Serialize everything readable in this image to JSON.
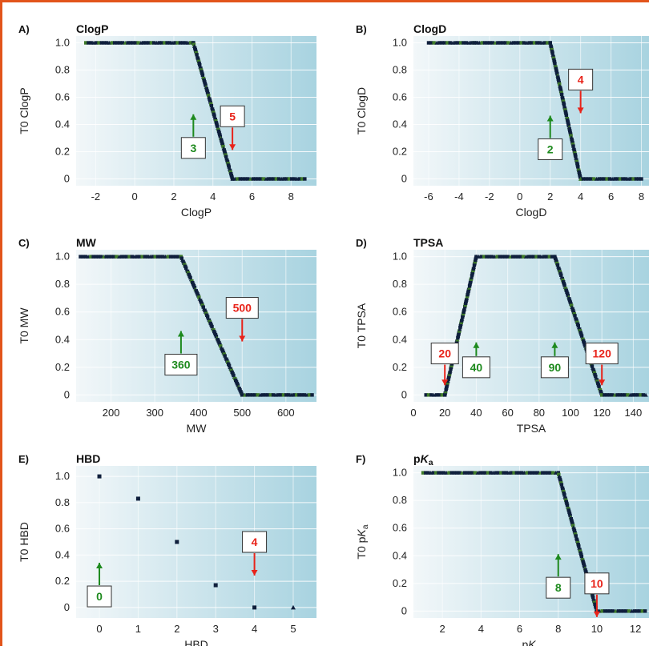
{
  "colors": {
    "frame": "#e2541b",
    "plot_left": "#f2f7f9",
    "plot_right": "#a8d3e0",
    "grid": "#ffffff",
    "lower_arrow": "#1e8a1e",
    "upper_arrow": "#e8231a",
    "points": "#0f1f3c",
    "points_green": "#3f7a2a"
  },
  "chart_data": [
    {
      "panel_label": "A)",
      "title": "ClogP",
      "type": "line",
      "xlabel": "ClogP",
      "ylabel": "T0 ClogP",
      "xlim": [
        -3,
        9.3
      ],
      "ylim": [
        -0.05,
        1.05
      ],
      "xticks": [
        -2,
        0,
        2,
        4,
        6,
        8
      ],
      "yticks": [
        0,
        0.2,
        0.4,
        0.6,
        0.8,
        1.0
      ],
      "ytick_labels": [
        "0",
        "0.2",
        "0.4",
        "0.6",
        "0.8",
        "1.0"
      ],
      "series": [
        {
          "x": [
            -2.5,
            3,
            5,
            8.7
          ],
          "y": [
            1,
            1,
            0,
            0
          ]
        }
      ],
      "lower_threshold": {
        "value": 3,
        "label": "3"
      },
      "upper_threshold": {
        "value": 5,
        "label": "5"
      }
    },
    {
      "panel_label": "B)",
      "title": "ClogD",
      "type": "line",
      "xlabel": "ClogD",
      "ylabel": "T0 ClogD",
      "xlim": [
        -7,
        8.5
      ],
      "ylim": [
        -0.05,
        1.05
      ],
      "xticks": [
        -6,
        -4,
        -2,
        0,
        2,
        4,
        6,
        8
      ],
      "yticks": [
        0,
        0.2,
        0.4,
        0.6,
        0.8,
        1.0
      ],
      "ytick_labels": [
        "0",
        "0.2",
        "0.4",
        "0.6",
        "0.8",
        "1.0"
      ],
      "series": [
        {
          "x": [
            -6,
            -3,
            2,
            4,
            8
          ],
          "y": [
            1,
            1,
            1,
            0,
            0
          ]
        }
      ],
      "lower_threshold": {
        "value": 2,
        "label": "2"
      },
      "upper_threshold": {
        "value": 4,
        "label": "4"
      }
    },
    {
      "panel_label": "C)",
      "title": "MW",
      "type": "line",
      "xlabel": "MW",
      "ylabel": "T0 MW",
      "xlim": [
        120,
        670
      ],
      "ylim": [
        -0.05,
        1.05
      ],
      "xticks": [
        200,
        300,
        400,
        500,
        600
      ],
      "yticks": [
        0,
        0.2,
        0.4,
        0.6,
        0.8,
        1.0
      ],
      "ytick_labels": [
        "0",
        "0.2",
        "0.4",
        "0.6",
        "0.8",
        "1.0"
      ],
      "series": [
        {
          "x": [
            130,
            360,
            500,
            660
          ],
          "y": [
            1,
            1,
            0,
            0
          ]
        }
      ],
      "lower_threshold": {
        "value": 360,
        "label": "360"
      },
      "upper_threshold": {
        "value": 500,
        "label": "500"
      }
    },
    {
      "panel_label": "D)",
      "title": "TPSA",
      "type": "line",
      "xlabel": "TPSA",
      "ylabel": "T0 TPSA",
      "xlim": [
        0,
        150
      ],
      "ylim": [
        -0.05,
        1.05
      ],
      "xticks": [
        0,
        20,
        40,
        60,
        80,
        100,
        120,
        140
      ],
      "yticks": [
        0,
        0.2,
        0.4,
        0.6,
        0.8,
        1.0
      ],
      "ytick_labels": [
        "0",
        "0.2",
        "0.4",
        "0.6",
        "0.8",
        "1.0"
      ],
      "series": [
        {
          "x": [
            8,
            20,
            40,
            90,
            120,
            148
          ],
          "y": [
            0,
            0,
            1,
            1,
            0,
            0
          ]
        }
      ],
      "lower_thresholds": [
        {
          "value": 40,
          "label": "40"
        },
        {
          "value": 90,
          "label": "90"
        }
      ],
      "upper_thresholds": [
        {
          "value": 20,
          "label": "20"
        },
        {
          "value": 120,
          "label": "120"
        }
      ]
    },
    {
      "panel_label": "E)",
      "title": "HBD",
      "type": "scatter",
      "xlabel": "HBD",
      "ylabel": "T0 HBD",
      "xlim": [
        -0.6,
        5.6
      ],
      "ylim": [
        -0.08,
        1.08
      ],
      "xticks": [
        0,
        1,
        2,
        3,
        4,
        5
      ],
      "yticks": [
        0,
        0.2,
        0.4,
        0.6,
        0.8,
        1.0
      ],
      "ytick_labels": [
        "0",
        "0.2",
        "0.4",
        "0.6",
        "0.8",
        "1.0"
      ],
      "series": [
        {
          "x": [
            0,
            1,
            2,
            3,
            4,
            5
          ],
          "y": [
            1.0,
            0.83,
            0.5,
            0.17,
            0,
            0
          ]
        }
      ],
      "lower_threshold": {
        "value": 0,
        "label": "0"
      },
      "upper_threshold": {
        "value": 4,
        "label": "4"
      }
    },
    {
      "panel_label": "F)",
      "title": "pKa",
      "type": "line",
      "xlabel": "pKa",
      "ylabel": "T0 pKa",
      "xlim": [
        0.5,
        12.7
      ],
      "ylim": [
        -0.05,
        1.05
      ],
      "xticks": [
        2,
        4,
        6,
        8,
        10,
        12
      ],
      "yticks": [
        0,
        0.2,
        0.4,
        0.6,
        0.8,
        1.0
      ],
      "ytick_labels": [
        "0",
        "0.2",
        "0.4",
        "0.6",
        "0.8",
        "1.0"
      ],
      "series": [
        {
          "x": [
            1,
            8,
            10,
            12.5
          ],
          "y": [
            1,
            1,
            0,
            0
          ]
        }
      ],
      "lower_threshold": {
        "value": 8,
        "label": "8"
      },
      "upper_threshold": {
        "value": 10,
        "label": "10"
      }
    }
  ]
}
